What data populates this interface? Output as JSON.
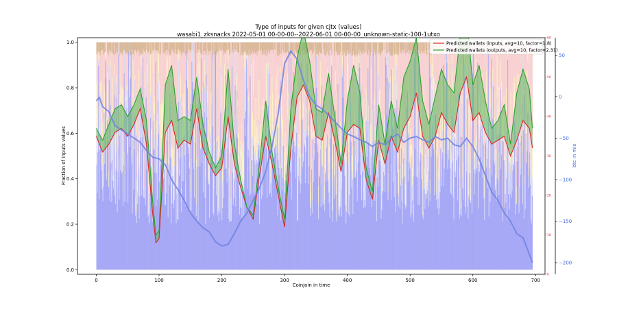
{
  "chart_data": {
    "type": "area",
    "title": "Type of inputs for given cjtx (values)",
    "subtitle": "wasabi1_zksnacks 2022-05-01 00-00-00--2022-06-01 00-00-00_unknown-static-100-1utxo",
    "xlabel": "Coinjoin in time",
    "ylabel": "Fraction of inputs values",
    "y2label": "btc in mix",
    "xlim": [
      -30,
      715
    ],
    "ylim": [
      -0.02,
      1.02
    ],
    "y2lim": [
      -214,
      71
    ],
    "y3lim": [
      0,
      60
    ],
    "xticks": [
      "0",
      "100",
      "200",
      "300",
      "400",
      "500",
      "600",
      "700"
    ],
    "yticks": [
      "0.0",
      "0.2",
      "0.4",
      "0.6",
      "0.8",
      "1.0"
    ],
    "y2ticks": [
      "50",
      "0",
      "−50",
      "−100",
      "−150",
      "−200"
    ],
    "y3ticks": [
      "0",
      "10",
      "20",
      "30",
      "40",
      "50",
      "60"
    ],
    "legend_position": "top-right",
    "colors": {
      "background_band_tan": "#d2b48c",
      "background_band_pink": "#f7c9c9",
      "background_band_yellow": "#fff0c0",
      "background_band_lavender": "#dcdcf5",
      "bars_blue": "#9fa0f5",
      "inputs_line": "#d62728",
      "outputs_line": "#2ca02c",
      "outputs_fill": "#5cb85c",
      "btc_line": "#6f83e0",
      "right_axis_blue": "#4169e1"
    },
    "series": [
      {
        "name": "Predicted wallets (inputs, avg=10, factor=1.8)",
        "axis": "right-inner",
        "x": [
          0,
          10,
          20,
          30,
          40,
          50,
          60,
          70,
          80,
          90,
          95,
          100,
          110,
          120,
          130,
          140,
          150,
          160,
          170,
          180,
          190,
          200,
          210,
          220,
          230,
          240,
          250,
          260,
          270,
          280,
          290,
          300,
          310,
          320,
          330,
          340,
          350,
          360,
          370,
          380,
          390,
          400,
          410,
          420,
          430,
          440,
          450,
          460,
          470,
          480,
          490,
          500,
          510,
          520,
          530,
          540,
          550,
          560,
          570,
          580,
          590,
          600,
          610,
          620,
          630,
          640,
          650,
          660,
          670,
          680,
          690,
          695
        ],
        "values": [
          35,
          31,
          33,
          36,
          37,
          35,
          38,
          42,
          33,
          15,
          8,
          9,
          36,
          39,
          32,
          34,
          33,
          42,
          32,
          28,
          25,
          27,
          40,
          28,
          22,
          17,
          14,
          25,
          35,
          28,
          20,
          12,
          32,
          45,
          48,
          44,
          35,
          34,
          41,
          34,
          26,
          36,
          38,
          37,
          24,
          19,
          34,
          28,
          35,
          31,
          37,
          40,
          46,
          35,
          32,
          35,
          41,
          38,
          36,
          46,
          50,
          39,
          41,
          36,
          33,
          34,
          35,
          30,
          34,
          39,
          37,
          32
        ]
      },
      {
        "name": "Predicted wallets (outputs, avg=10, factor=2.31)",
        "axis": "right-inner",
        "x": [
          0,
          10,
          20,
          30,
          40,
          50,
          60,
          70,
          80,
          90,
          95,
          100,
          110,
          120,
          130,
          140,
          150,
          160,
          170,
          180,
          190,
          200,
          210,
          220,
          230,
          240,
          250,
          260,
          270,
          280,
          290,
          300,
          310,
          320,
          330,
          340,
          350,
          360,
          370,
          380,
          390,
          400,
          410,
          420,
          430,
          440,
          450,
          460,
          470,
          480,
          490,
          500,
          510,
          520,
          530,
          540,
          550,
          560,
          570,
          580,
          590,
          600,
          610,
          620,
          630,
          640,
          650,
          660,
          670,
          680,
          690,
          695
        ],
        "values": [
          37,
          34,
          38,
          42,
          43,
          40,
          43,
          47,
          39,
          18,
          10,
          11,
          48,
          53,
          39,
          40,
          39,
          50,
          38,
          31,
          27,
          30,
          52,
          33,
          24,
          17,
          15,
          28,
          44,
          31,
          22,
          14,
          42,
          55,
          62,
          54,
          42,
          41,
          51,
          40,
          28,
          44,
          53,
          46,
          27,
          21,
          43,
          33,
          44,
          37,
          50,
          54,
          60,
          44,
          38,
          45,
          52,
          48,
          46,
          61,
          66,
          48,
          53,
          44,
          37,
          39,
          43,
          33,
          46,
          52,
          47,
          37
        ]
      },
      {
        "name": "btc in mix",
        "axis": "right",
        "x": [
          0,
          5,
          10,
          20,
          30,
          40,
          50,
          60,
          70,
          80,
          90,
          100,
          110,
          120,
          130,
          140,
          150,
          160,
          170,
          180,
          190,
          200,
          210,
          220,
          230,
          240,
          250,
          260,
          270,
          280,
          290,
          300,
          310,
          320,
          330,
          340,
          350,
          360,
          370,
          380,
          390,
          400,
          410,
          420,
          430,
          440,
          450,
          460,
          470,
          480,
          490,
          500,
          510,
          520,
          530,
          540,
          550,
          560,
          570,
          580,
          590,
          600,
          610,
          620,
          630,
          640,
          650,
          660,
          670,
          680,
          690,
          695
        ],
        "values": [
          -5,
          -1,
          -12,
          -18,
          -35,
          -40,
          -45,
          -50,
          -55,
          -65,
          -73,
          -75,
          -82,
          -100,
          -112,
          -125,
          -140,
          -150,
          -158,
          -163,
          -175,
          -180,
          -178,
          -165,
          -150,
          -140,
          -125,
          -110,
          -90,
          -60,
          -20,
          40,
          55,
          45,
          20,
          0,
          -10,
          -15,
          -22,
          -30,
          -38,
          -45,
          -48,
          -52,
          -55,
          -60,
          -55,
          -58,
          -50,
          -45,
          -55,
          -50,
          -48,
          -52,
          -55,
          -48,
          -52,
          -50,
          -58,
          -60,
          -50,
          -60,
          -75,
          -95,
          -115,
          -125,
          -140,
          -150,
          -165,
          -170,
          -190,
          -200
        ]
      }
    ]
  },
  "legend": {
    "inputs_label": "Predicted wallets (inputs, avg=10, factor=1.8)",
    "outputs_label": "Predicted wallets (outputs, avg=10, factor=2.31)"
  }
}
